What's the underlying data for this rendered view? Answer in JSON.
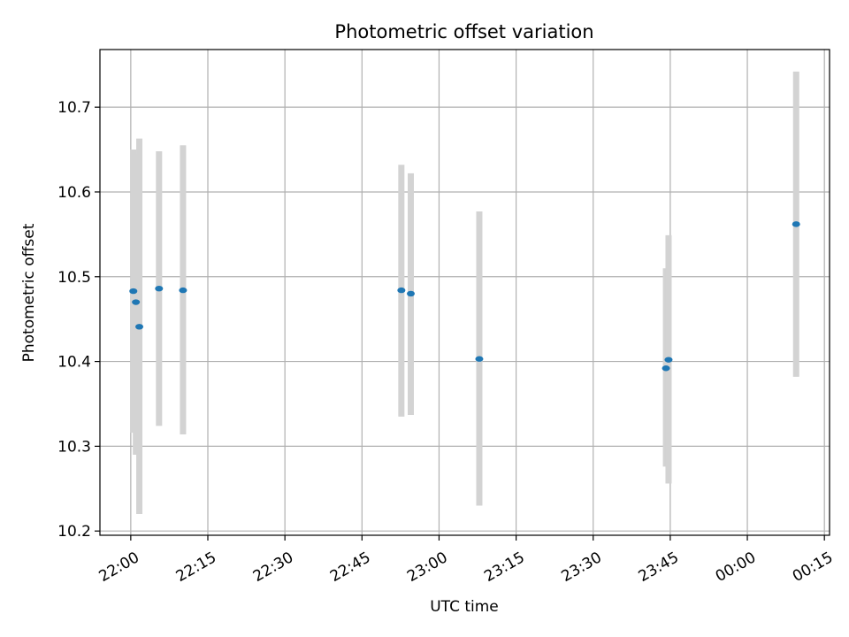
{
  "chart_data": {
    "type": "scatter",
    "title": "Photometric offset variation",
    "xlabel": "UTC time",
    "ylabel": "Photometric offset",
    "x_tick_labels": [
      "22:00",
      "22:15",
      "22:30",
      "22:45",
      "23:00",
      "23:15",
      "23:30",
      "23:45",
      "00:00",
      "00:15"
    ],
    "x_ticks": [
      "22:00",
      "22:15",
      "22:30",
      "22:45",
      "23:00",
      "23:15",
      "23:30",
      "23:45",
      "24:00",
      "24:15"
    ],
    "y_tick_labels": [
      "10.2",
      "10.3",
      "10.4",
      "10.5",
      "10.6",
      "10.7"
    ],
    "y_ticks": [
      10.2,
      10.3,
      10.4,
      10.5,
      10.6,
      10.7
    ],
    "xlim": [
      "21:54",
      "24:16"
    ],
    "ylim": [
      10.195,
      10.768
    ],
    "grid": true,
    "point_color": "#1f77b4",
    "errorbar_color": "#d3d3d3",
    "points": [
      {
        "x": "22:00:30",
        "y": 10.483,
        "yerr_low": 10.316,
        "yerr_high": 10.65
      },
      {
        "x": "22:01:00",
        "y": 10.47,
        "yerr_low": 10.29,
        "yerr_high": 10.645
      },
      {
        "x": "22:01:40",
        "y": 10.441,
        "yerr_low": 10.22,
        "yerr_high": 10.663
      },
      {
        "x": "22:05:30",
        "y": 10.486,
        "yerr_low": 10.324,
        "yerr_high": 10.648
      },
      {
        "x": "22:10:10",
        "y": 10.484,
        "yerr_low": 10.314,
        "yerr_high": 10.655
      },
      {
        "x": "22:52:40",
        "y": 10.484,
        "yerr_low": 10.335,
        "yerr_high": 10.632
      },
      {
        "x": "22:54:30",
        "y": 10.48,
        "yerr_low": 10.337,
        "yerr_high": 10.622
      },
      {
        "x": "23:07:50",
        "y": 10.403,
        "yerr_low": 10.23,
        "yerr_high": 10.577
      },
      {
        "x": "23:44:10",
        "y": 10.392,
        "yerr_low": 10.276,
        "yerr_high": 10.51
      },
      {
        "x": "23:44:40",
        "y": 10.402,
        "yerr_low": 10.256,
        "yerr_high": 10.549
      },
      {
        "x": "24:09:30",
        "y": 10.562,
        "yerr_low": 10.382,
        "yerr_high": 10.742
      }
    ]
  }
}
